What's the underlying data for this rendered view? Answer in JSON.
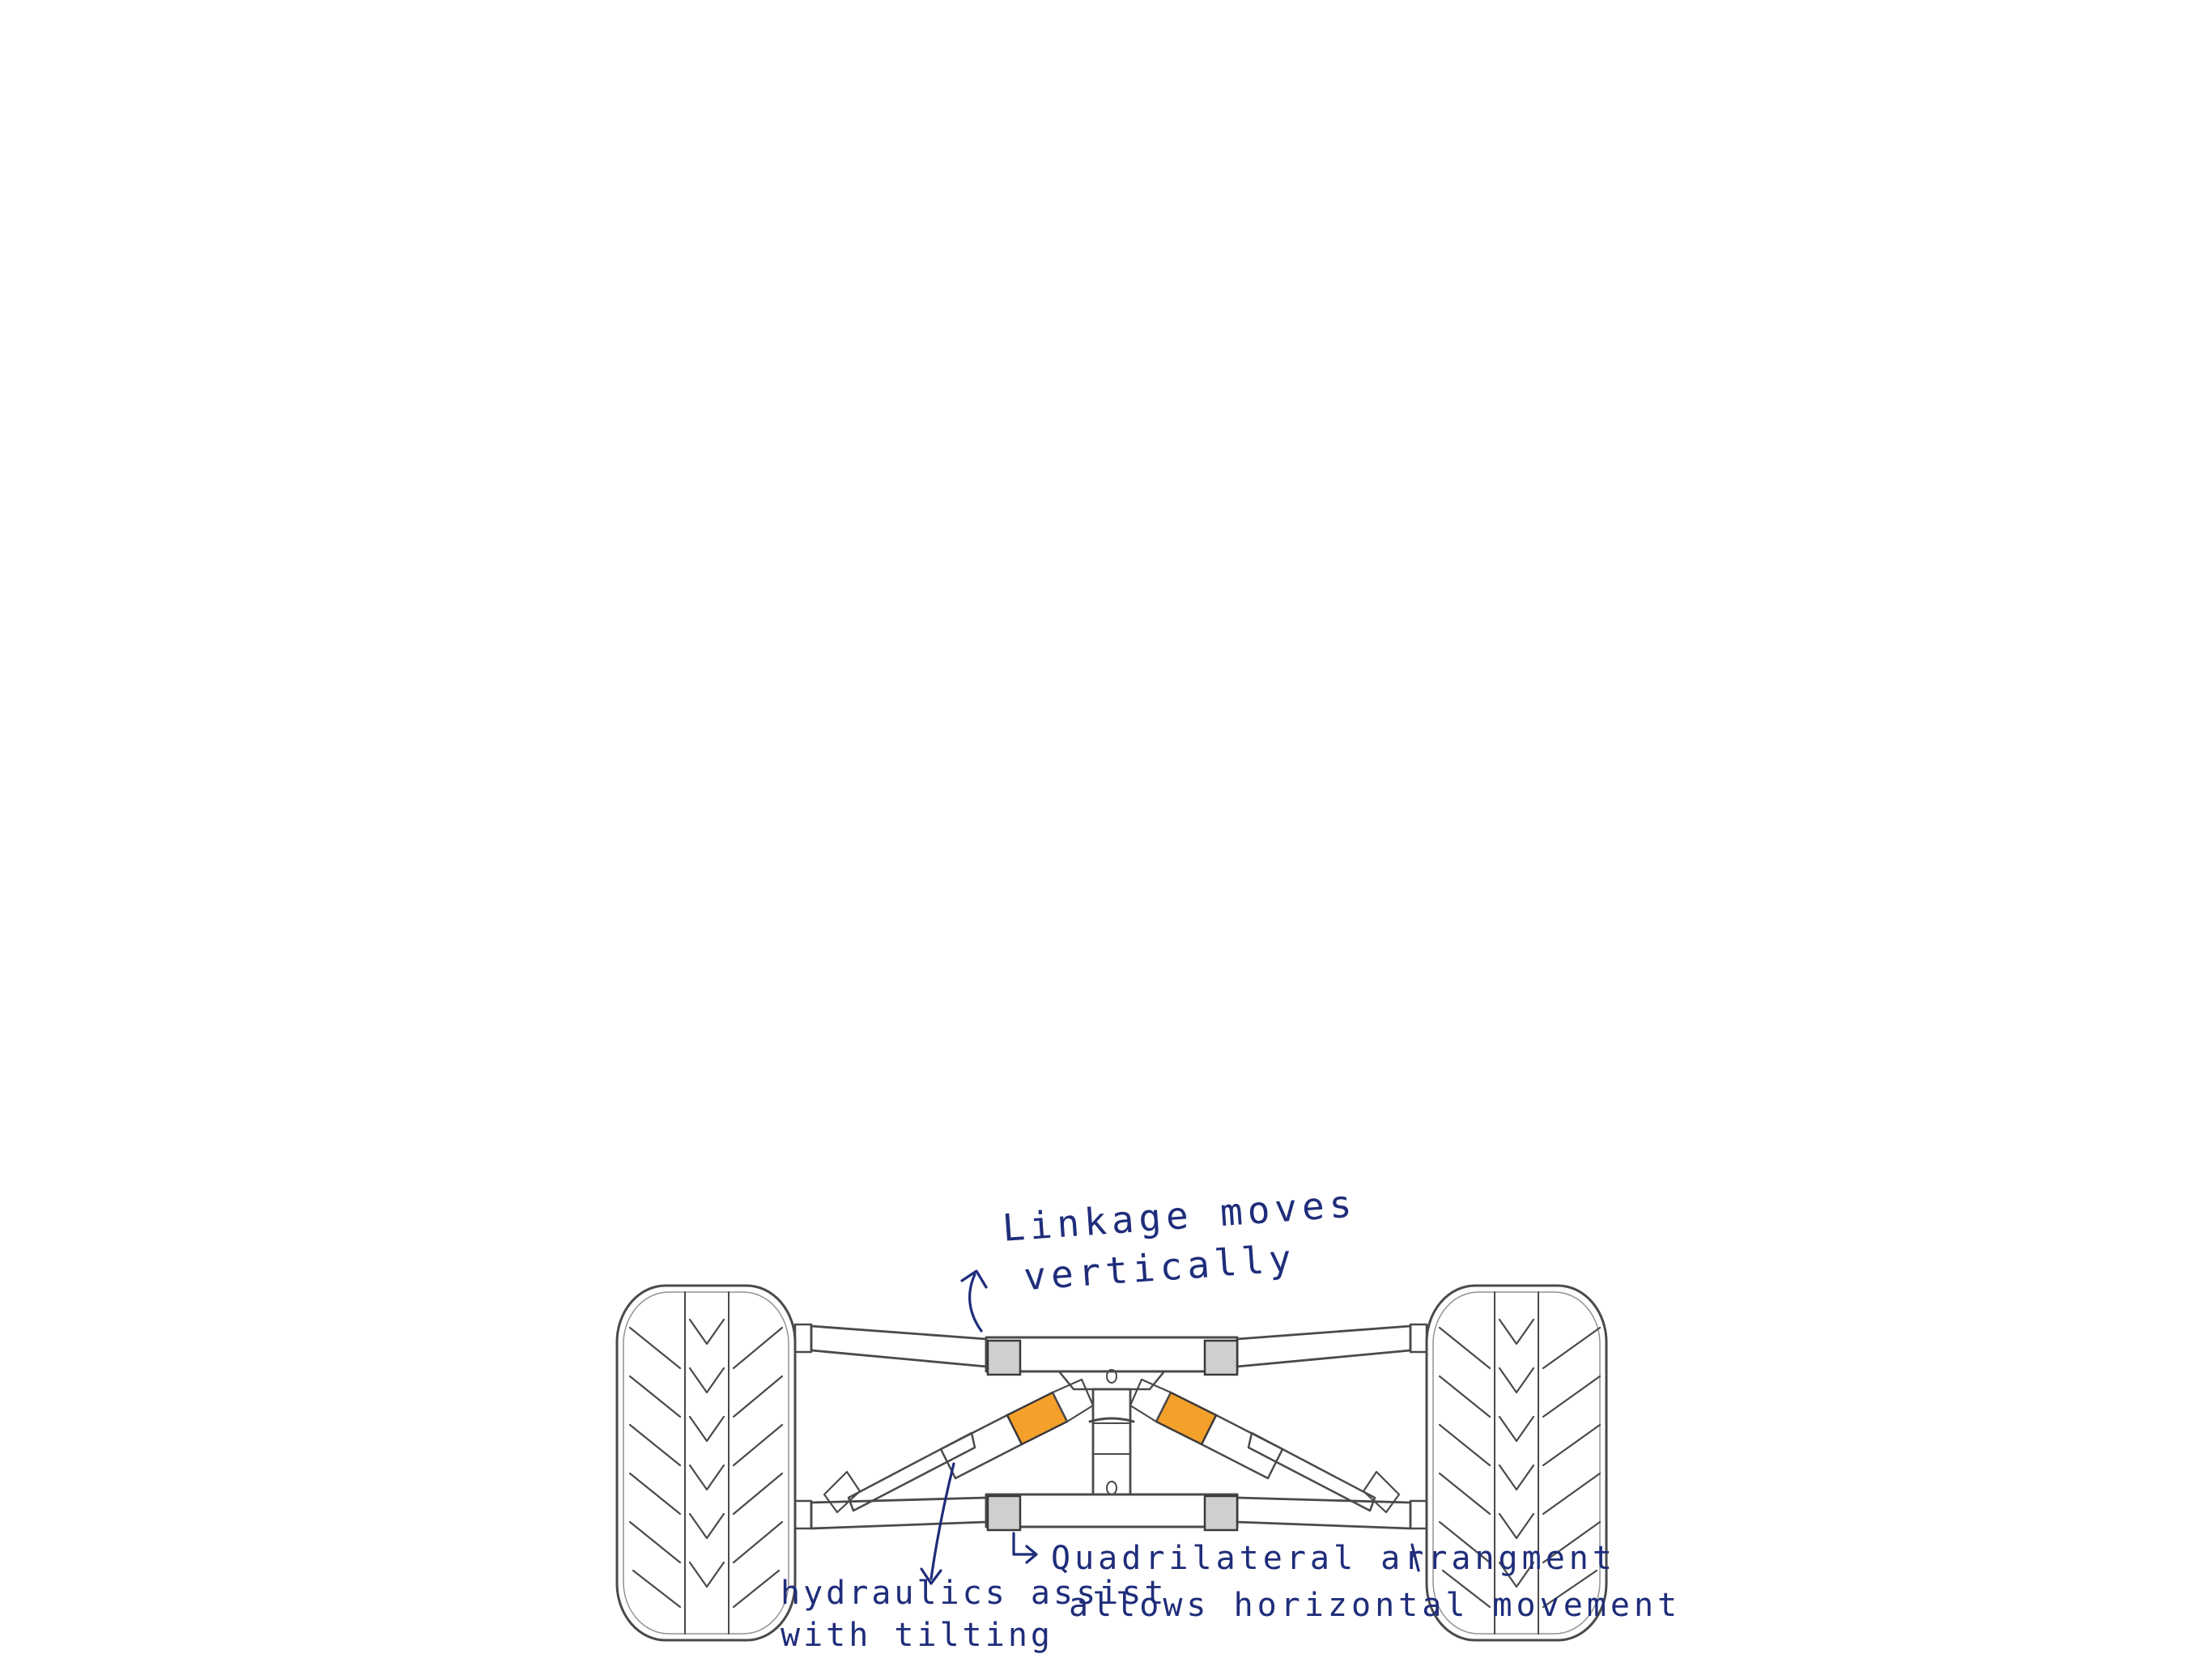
{
  "annotations": {
    "linkage": {
      "line1": "Linkage moves",
      "line2": "vertically"
    },
    "hydraulics": {
      "line1": "hydraulics assist",
      "line2": "with tilting"
    },
    "quadrilateral": {
      "line1": "Quadrilateral arrangment",
      "line2": "allows horizontal movement"
    }
  },
  "colors": {
    "ink": "#1f2d7a",
    "pencil": "#4a4a4a",
    "hydraulic_cylinder": "#f5a02a",
    "background": "#ffffff"
  }
}
